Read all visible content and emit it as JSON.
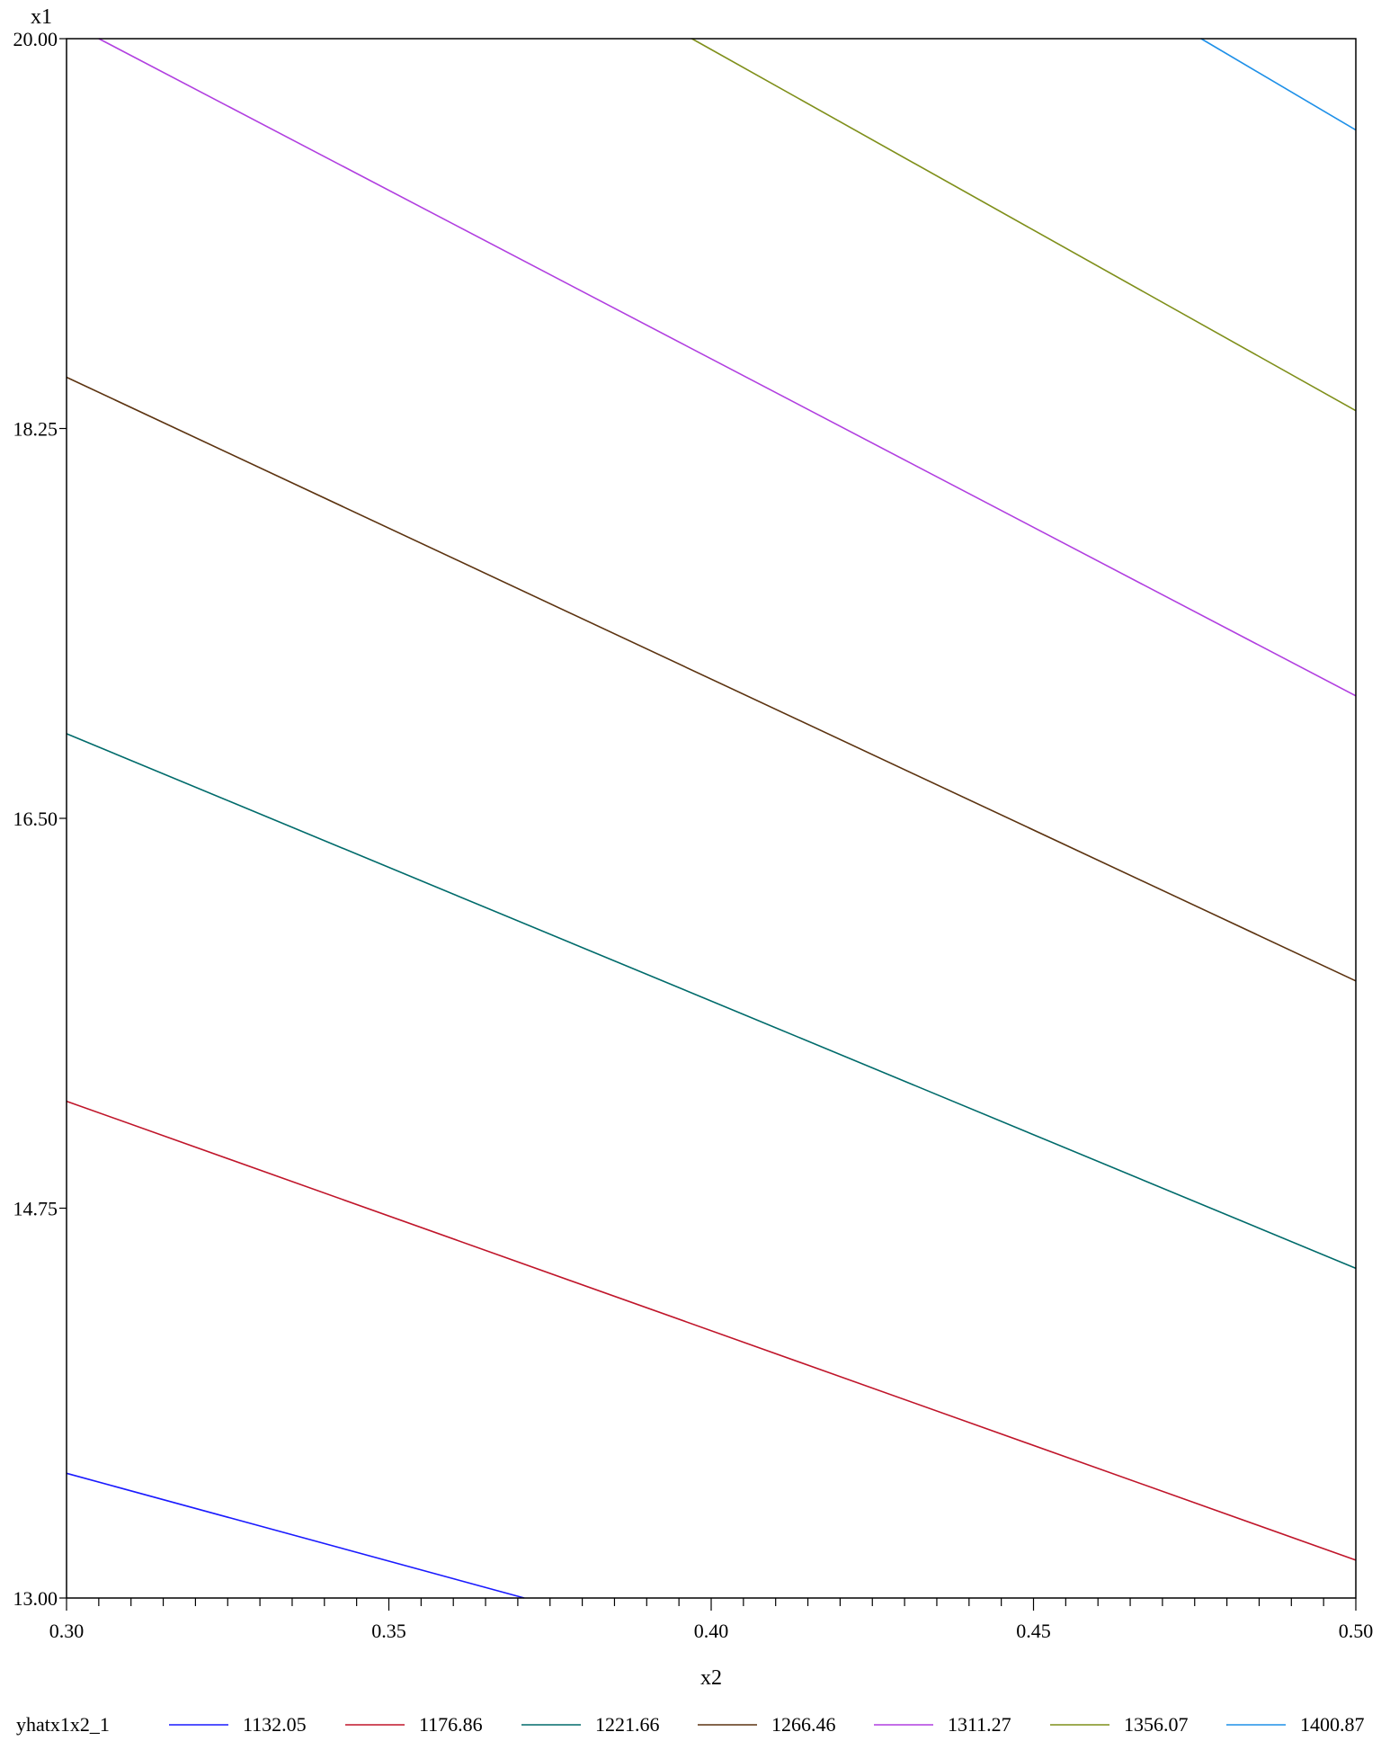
{
  "chart_data": {
    "type": "line",
    "title": "",
    "xlabel": "x2",
    "ylabel": "x1",
    "xlim": [
      0.3,
      0.5
    ],
    "ylim": [
      13.0,
      20.0
    ],
    "x_ticks": [
      0.3,
      0.35,
      0.4,
      0.45,
      0.5
    ],
    "x_tick_labels": [
      "0.30",
      "0.35",
      "0.40",
      "0.45",
      "0.50"
    ],
    "y_ticks": [
      13.0,
      14.75,
      16.5,
      18.25,
      20.0
    ],
    "y_tick_labels": [
      "13.00",
      "14.75",
      "16.50",
      "18.25",
      "20.00"
    ],
    "x_minor_step": 0.005,
    "grid": false,
    "legend_title": "yhatx1x2_1",
    "legend_position": "bottom",
    "series": [
      {
        "name": "1132.05",
        "color": "#1a1aff",
        "x": [
          0.3,
          0.371
        ],
        "y": [
          13.56,
          13.0
        ]
      },
      {
        "name": "1176.86",
        "color": "#c0152a",
        "x": [
          0.3,
          0.5
        ],
        "y": [
          15.23,
          13.17
        ]
      },
      {
        "name": "1221.66",
        "color": "#006b6b",
        "x": [
          0.3,
          0.5
        ],
        "y": [
          16.88,
          14.48
        ]
      },
      {
        "name": "1266.46",
        "color": "#5c3310",
        "x": [
          0.3,
          0.5
        ],
        "y": [
          18.48,
          15.77
        ]
      },
      {
        "name": "1311.27",
        "color": "#b13fe0",
        "x": [
          0.305,
          0.5
        ],
        "y": [
          20.0,
          17.05
        ]
      },
      {
        "name": "1356.07",
        "color": "#7f8f1a",
        "x": [
          0.397,
          0.5
        ],
        "y": [
          20.0,
          18.33
        ]
      },
      {
        "name": "1400.87",
        "color": "#1e90e8",
        "x": [
          0.476,
          0.5
        ],
        "y": [
          20.0,
          19.59
        ]
      }
    ]
  }
}
